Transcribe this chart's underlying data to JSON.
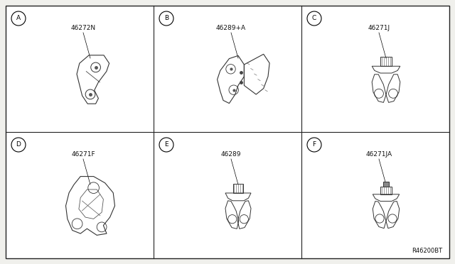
{
  "bg_color": "#f0f0ec",
  "panel_bg": "#ffffff",
  "border_color": "#222222",
  "grid_color": "#222222",
  "text_color": "#111111",
  "fig_width": 6.4,
  "fig_height": 3.72,
  "panels": [
    {
      "id": "A",
      "part": "46272N",
      "col": 0,
      "row": 0
    },
    {
      "id": "B",
      "part": "46289+A",
      "col": 1,
      "row": 0
    },
    {
      "id": "C",
      "part": "46271J",
      "col": 2,
      "row": 0
    },
    {
      "id": "D",
      "part": "46271F",
      "col": 0,
      "row": 1
    },
    {
      "id": "E",
      "part": "46289",
      "col": 1,
      "row": 1
    },
    {
      "id": "F",
      "part": "46271JA",
      "col": 2,
      "row": 1
    }
  ],
  "ref_code": "R46200BT",
  "label_fontsize": 6.5,
  "id_fontsize": 6.5,
  "ref_fontsize": 6.0
}
